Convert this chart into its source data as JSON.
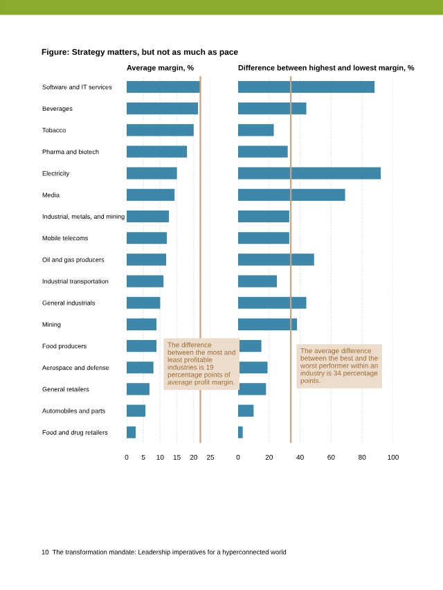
{
  "chart_data": [
    {
      "type": "bar",
      "orientation": "horizontal",
      "title": "Average margin, %",
      "categories": [
        "Software and IT services",
        "Beverages",
        "Tobacco",
        "Pharma and biotech",
        "Electricity",
        "Media",
        "Industrial, metals, and mining",
        "Mobile telecoms",
        "Oil and gas producers",
        "Industrial transportation",
        "General industrials",
        "Mining",
        "Food producers",
        "Aerospace and defense",
        "General retailers",
        "Automobiles and parts",
        "Food and drug retailers"
      ],
      "values": [
        22,
        21.3,
        20,
        18,
        15,
        14.3,
        12.6,
        12,
        11.8,
        11,
        10,
        8.9,
        8.9,
        8,
        6.8,
        5.6,
        2.7
      ],
      "color": "#3d87aa",
      "xlim": [
        0,
        25
      ],
      "xticks": [
        0,
        5,
        10,
        15,
        20,
        25
      ],
      "grid": "x",
      "ref_lines": [
        {
          "axis": "x",
          "value": 22,
          "color": "#c9a27e"
        }
      ],
      "annotations": [
        "Figure: Strategy matters, but not as much as pace",
        "The difference between the most and least profitable industries is 19 percentage points of average profit margin.",
        "10  The transformation mandate: Leadership imperatives for a hyperconnected world"
      ]
    },
    {
      "type": "bar",
      "orientation": "horizontal",
      "title": "Difference between highest and lowest margin, %",
      "categories": [
        null,
        null,
        null,
        null,
        null,
        null,
        null,
        null,
        null,
        null,
        null,
        null,
        null,
        null,
        null,
        null,
        null
      ],
      "values": [
        88,
        44,
        23,
        32,
        92,
        69,
        33,
        33,
        49,
        25,
        44,
        38,
        15,
        19,
        18,
        10,
        3
      ],
      "color": "#3d87aa",
      "xlim": [
        0,
        100
      ],
      "xticks": [
        0,
        20,
        40,
        60,
        80,
        100
      ],
      "grid": "x",
      "tick_labels": "x",
      "ref_lines": [
        {
          "axis": "x",
          "value": 34,
          "color": "#c9a27e"
        }
      ],
      "annotations": [
        "The average difference between the best and the worst performer within an industry is 34 percentage points."
      ]
    }
  ]
}
